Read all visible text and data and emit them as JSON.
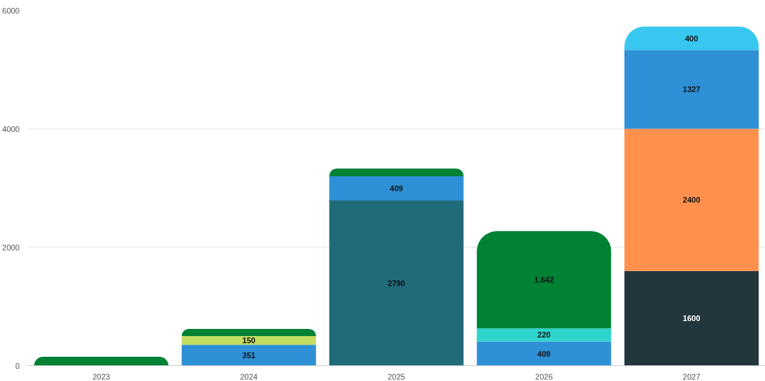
{
  "chart_data": {
    "type": "bar",
    "stacked": true,
    "categories": [
      "2023",
      "2024",
      "2025",
      "2026",
      "2027"
    ],
    "series": [
      {
        "colors": [
          "#008234",
          "#2e90d6",
          "#206a7a",
          "#2e90d6",
          "#22373b"
        ],
        "values": [
          150,
          351,
          2790,
          409,
          1600
        ],
        "value_labels": [
          null,
          "351",
          "2790",
          "409",
          "1600"
        ]
      },
      {
        "colors": [
          null,
          "#c3dd62",
          "#2e90d6",
          "#2dd4cc",
          "#ff914d"
        ],
        "values": [
          null,
          150,
          409,
          220,
          2400
        ],
        "value_labels": [
          null,
          "150",
          "409",
          "220",
          "2400"
        ]
      },
      {
        "colors": [
          null,
          "#008234",
          "#008234",
          "#008234",
          "#2e90d6"
        ],
        "values": [
          null,
          120,
          130,
          1642,
          1327
        ],
        "value_labels": [
          null,
          null,
          null,
          "1,642",
          "1327"
        ]
      },
      {
        "colors": [
          null,
          null,
          null,
          null,
          "#38c8ef"
        ],
        "values": [
          null,
          null,
          null,
          null,
          400
        ],
        "value_labels": [
          null,
          null,
          null,
          null,
          "400"
        ]
      }
    ],
    "ylim": [
      0,
      6000
    ],
    "yticks": [
      0,
      2000,
      4000,
      6000
    ],
    "grid": "y"
  }
}
